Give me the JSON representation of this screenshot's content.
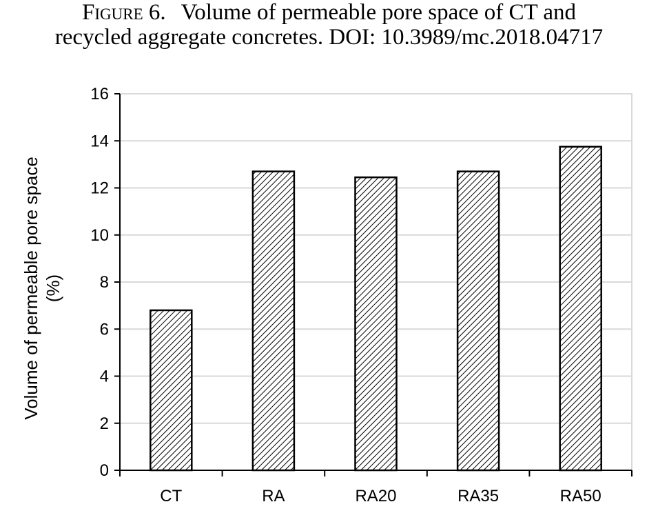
{
  "caption": {
    "label": "Figure 6.",
    "line1": "Volume of permeable pore space of CT and",
    "line2": "recycled aggregate concretes. DOI: 10.3989/mc.2018.04717"
  },
  "chart_data": {
    "type": "bar",
    "title": "",
    "categories": [
      "CT",
      "RA",
      "RA20",
      "RA35",
      "RA50"
    ],
    "values": [
      6.8,
      12.7,
      12.45,
      12.7,
      13.75
    ],
    "xlabel": "",
    "ylabel_line1": "Volume of permeable pore space",
    "ylabel_line2": "(%)",
    "ylim": [
      0,
      16
    ],
    "yticks": [
      "0",
      "2",
      "4",
      "6",
      "8",
      "10",
      "12",
      "14",
      "16"
    ],
    "grid": true,
    "legend": "none",
    "bar_fill": "diagonal-hatch",
    "colors": {
      "bar_stroke": "#000000",
      "grid": "#d9d9d9",
      "axis": "#000000"
    }
  }
}
